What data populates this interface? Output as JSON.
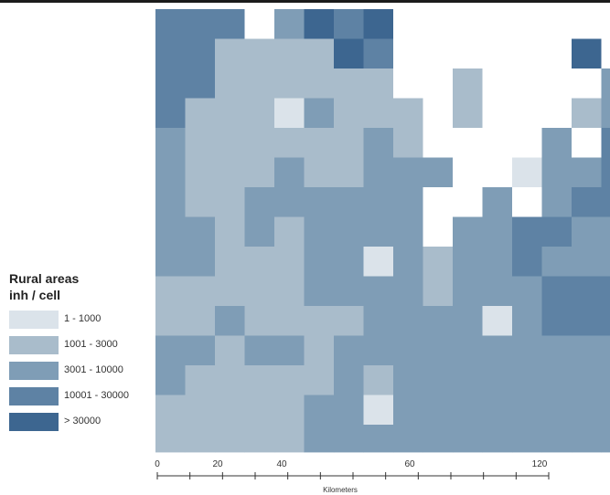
{
  "legend": {
    "title_line1": "Rural areas",
    "title_line2": "inh / cell",
    "classes": [
      {
        "label": "1 - 1000",
        "color": "#dbe3ea"
      },
      {
        "label": "1001 - 3000",
        "color": "#a9bccb"
      },
      {
        "label": "3001 - 10000",
        "color": "#7f9db6"
      },
      {
        "label": "10001 - 30000",
        "color": "#5e82a4"
      },
      {
        "label": "> 30000",
        "color": "#3d6690"
      }
    ]
  },
  "scale": {
    "ticks": [
      "0",
      "20",
      "40",
      "60",
      "120"
    ],
    "unit": "Kilometers"
  },
  "colors": {
    "c0": "#ffffff",
    "c1": "#dbe3ea",
    "c2": "#a9bccb",
    "c3": "#7f9db6",
    "c4": "#5e82a4",
    "c5": "#3d6690"
  }
}
